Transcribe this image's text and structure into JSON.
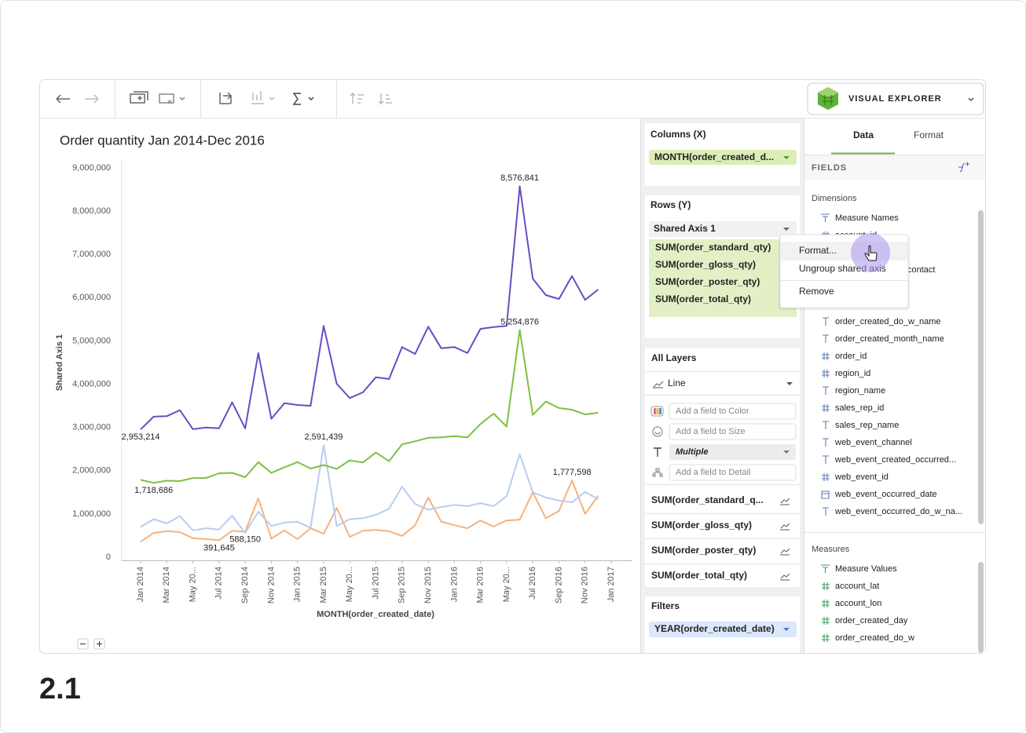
{
  "toolbar": {
    "brand": "VISUAL EXPLORER"
  },
  "chart_data": {
    "type": "line",
    "title": "Order quantity Jan 2014-Dec 2016",
    "x_label": "MONTH(order_created_date)",
    "y_label": "Shared Axis 1",
    "categories": [
      "Jan 2014",
      null,
      "Mar 2014",
      null,
      "May 20...",
      null,
      "Jul 2014",
      null,
      "Sep 2014",
      null,
      "Nov 2014",
      null,
      "Jan 2015",
      null,
      "Mar 2015",
      null,
      "May 20...",
      null,
      "Jul 2015",
      null,
      "Sep 2015",
      null,
      "Nov 2015",
      null,
      "Jan 2016",
      null,
      "Mar 2016",
      null,
      "May 20...",
      null,
      "Jul 2016",
      null,
      "Sep 2016",
      null,
      "Nov 2016",
      null,
      "Jan 2017"
    ],
    "series": [
      {
        "color": "#f5b27e",
        "values": [
          360000,
          560000,
          600000,
          580000,
          440000,
          420000,
          391645,
          610000,
          588150,
          1360000,
          430000,
          620000,
          420000,
          670000,
          540000,
          1140000,
          470000,
          610000,
          630000,
          600000,
          490000,
          740000,
          1380000,
          820000,
          740000,
          670000,
          850000,
          710000,
          850000,
          870000,
          1500000,
          900000,
          1070000,
          1777598,
          1000000,
          1420000,
          null
        ],
        "value_labels": [
          null,
          null,
          null,
          null,
          null,
          null,
          "391,645",
          null,
          "588,150",
          null,
          null,
          null,
          null,
          null,
          null,
          null,
          null,
          null,
          null,
          null,
          null,
          null,
          null,
          null,
          null,
          null,
          null,
          null,
          null,
          null,
          null,
          null,
          null,
          "1,777,598",
          null,
          null,
          null
        ]
      },
      {
        "color": "#b8cdf1",
        "values": [
          700000,
          880000,
          780000,
          950000,
          620000,
          670000,
          640000,
          960000,
          560000,
          1050000,
          720000,
          800000,
          820000,
          680000,
          2591439,
          720000,
          880000,
          900000,
          980000,
          1120000,
          1630000,
          1230000,
          1100000,
          1160000,
          1210000,
          1180000,
          1250000,
          1180000,
          1410000,
          2380000,
          1500000,
          1380000,
          1310000,
          1270000,
          1510000,
          1340000,
          null
        ],
        "value_labels": [
          null,
          null,
          null,
          null,
          null,
          null,
          null,
          null,
          null,
          null,
          null,
          null,
          null,
          null,
          "2,591,439",
          null,
          null,
          null,
          null,
          null,
          null,
          null,
          null,
          null,
          null,
          null,
          null,
          null,
          null,
          null,
          null,
          null,
          null,
          null,
          null,
          null,
          null
        ]
      },
      {
        "color": "#7cc142",
        "values": [
          1790000,
          1718686,
          1770000,
          1760000,
          1830000,
          1830000,
          1940000,
          1950000,
          1850000,
          2200000,
          1950000,
          2080000,
          2200000,
          2050000,
          2130000,
          2040000,
          2240000,
          2190000,
          2420000,
          2220000,
          2610000,
          2680000,
          2760000,
          2770000,
          2800000,
          2770000,
          3080000,
          3320000,
          3020000,
          5254876,
          3290000,
          3600000,
          3450000,
          3410000,
          3300000,
          3340000,
          null
        ],
        "value_labels": [
          null,
          "1,718,686",
          null,
          null,
          null,
          null,
          null,
          null,
          null,
          null,
          null,
          null,
          null,
          null,
          null,
          null,
          null,
          null,
          null,
          null,
          null,
          null,
          null,
          null,
          null,
          null,
          null,
          null,
          null,
          "5,254,876",
          null,
          null,
          null,
          null,
          null,
          null,
          null
        ]
      },
      {
        "color": "#6a4bc4",
        "values": [
          2953214,
          3250000,
          3260000,
          3400000,
          2960000,
          3000000,
          2980000,
          3580000,
          2980000,
          4720000,
          3200000,
          3560000,
          3520000,
          3500000,
          5350000,
          4010000,
          3680000,
          3810000,
          4160000,
          4120000,
          4860000,
          4700000,
          5330000,
          4830000,
          4860000,
          4720000,
          5280000,
          5320000,
          5350000,
          8576841,
          6440000,
          6060000,
          5970000,
          6500000,
          5950000,
          6190000,
          null
        ],
        "value_labels": [
          "2,953,214",
          null,
          null,
          null,
          null,
          null,
          null,
          null,
          null,
          null,
          null,
          null,
          null,
          null,
          null,
          null,
          null,
          null,
          null,
          null,
          null,
          null,
          null,
          null,
          null,
          null,
          null,
          null,
          null,
          "8,576,841",
          null,
          null,
          null,
          null,
          null,
          null,
          null
        ]
      }
    ],
    "ylim": [
      0,
      9000000
    ],
    "yticks": [
      0,
      {
        "value": 1000000,
        "label": "1,000,000"
      },
      {
        "value": 2000000,
        "label": "2,000,000"
      },
      {
        "value": 3000000,
        "label": "3,000,000"
      },
      {
        "value": 4000000,
        "label": "4,000,000"
      },
      {
        "value": 5000000,
        "label": "5,000,000"
      },
      {
        "value": 6000000,
        "label": "6,000,000"
      },
      {
        "value": 7000000,
        "label": "7,000,000"
      },
      {
        "value": 8000000,
        "label": "8,000,000"
      },
      {
        "value": 9000000,
        "label": "9,000,000"
      }
    ],
    "grid": false
  },
  "shelves": {
    "columns": {
      "title": "Columns (X)",
      "pill": "MONTH(order_created_d..."
    },
    "rows": {
      "title": "Rows (Y)",
      "group": "Shared Axis 1",
      "pills": [
        "SUM(order_standard_qty)",
        "SUM(order_gloss_qty)",
        "SUM(order_poster_qty)",
        "SUM(order_total_qty)"
      ]
    },
    "layers": {
      "title": "All Layers",
      "mark": "Line",
      "color": "Add a field to Color",
      "size": "Add a field to Size",
      "label": "Multiple",
      "detail": "Add a field to Detail",
      "items": [
        "SUM(order_standard_q...",
        "SUM(order_gloss_qty)",
        "SUM(order_poster_qty)",
        "SUM(order_total_qty)"
      ]
    },
    "filters": {
      "title": "Filters",
      "pill": "YEAR(order_created_date)"
    }
  },
  "context_menu": [
    "Format...",
    "Ungroup shared axis",
    "Remove"
  ],
  "data_panel": {
    "tabs": [
      "Data",
      "Format"
    ],
    "fields_title": "FIELDS",
    "dimensions_title": "Dimensions",
    "dimensions": [
      "Measure Names",
      "account_id",
      "order_created_do_w_name",
      "order_created_month_name",
      "order_id",
      "region_id",
      "region_name",
      "sales_rep_id",
      "sales_rep_name",
      "web_event_channel",
      "web_event_created_occurred...",
      "web_event_id",
      "web_event_occurred_date",
      "web_event_occurred_do_w_na..."
    ],
    "hidden_fragment": "contact",
    "measures_title": "Measures",
    "measures": [
      "Measure Values",
      "account_lat",
      "account_lon",
      "order_created_day",
      "order_created_do_w"
    ]
  },
  "footer": {
    "version": "2.1"
  }
}
